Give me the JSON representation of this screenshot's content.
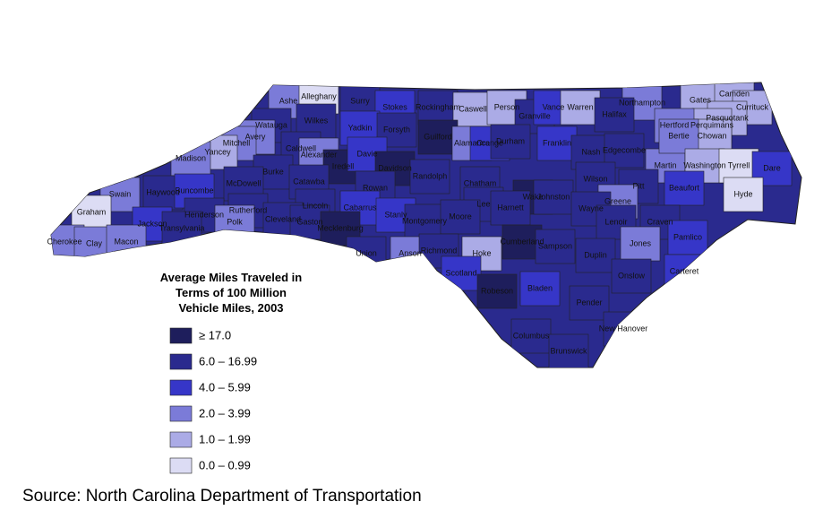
{
  "legend": {
    "title": [
      "Average Miles Traveled in",
      "Terms of 100 Million",
      "Vehicle Miles, 2003"
    ],
    "items": [
      {
        "label": "≥ 17.0",
        "color": "#1e1e5c"
      },
      {
        "label": "6.0 – 16.99",
        "color": "#2a2a8e"
      },
      {
        "label": "4.0 – 5.99",
        "color": "#3636c8"
      },
      {
        "label": "2.0 – 3.99",
        "color": "#7b7bd8"
      },
      {
        "label": "1.0 – 1.99",
        "color": "#ababe6"
      },
      {
        "label": "0.0 – 0.99",
        "color": "#dcdcf4"
      }
    ]
  },
  "counties": [
    {
      "name": "Ashe",
      "class": 3
    },
    {
      "name": "Alleghany",
      "class": 5
    },
    {
      "name": "Surry",
      "class": 1
    },
    {
      "name": "Stokes",
      "class": 2
    },
    {
      "name": "Rockingham",
      "class": 1
    },
    {
      "name": "Caswell",
      "class": 4
    },
    {
      "name": "Person",
      "class": 4
    },
    {
      "name": "Granville",
      "class": 1
    },
    {
      "name": "Vance",
      "class": 2
    },
    {
      "name": "Warren",
      "class": 4
    },
    {
      "name": "Northampton",
      "class": 3
    },
    {
      "name": "Gates",
      "class": 4
    },
    {
      "name": "Camden",
      "class": 4
    },
    {
      "name": "Currituck",
      "class": 4
    },
    {
      "name": "Pasquotank",
      "class": 4
    },
    {
      "name": "Perquimans",
      "class": 4
    },
    {
      "name": "Chowan",
      "class": 4
    },
    {
      "name": "Hertford",
      "class": 3
    },
    {
      "name": "Halifax",
      "class": 1
    },
    {
      "name": "Watauga",
      "class": 1
    },
    {
      "name": "Wilkes",
      "class": 1
    },
    {
      "name": "Yadkin",
      "class": 2
    },
    {
      "name": "Forsyth",
      "class": 1
    },
    {
      "name": "Guilford",
      "class": 0
    },
    {
      "name": "Alamance",
      "class": 3
    },
    {
      "name": "Orange",
      "class": 2
    },
    {
      "name": "Durham",
      "class": 1
    },
    {
      "name": "Franklin",
      "class": 2
    },
    {
      "name": "Nash",
      "class": 1
    },
    {
      "name": "Edgecombe",
      "class": 1
    },
    {
      "name": "Martin",
      "class": 3
    },
    {
      "name": "Bertie",
      "class": 3
    },
    {
      "name": "Washington",
      "class": 4
    },
    {
      "name": "Tyrrell",
      "class": 5
    },
    {
      "name": "Dare",
      "class": 2
    },
    {
      "name": "Hyde",
      "class": 5
    },
    {
      "name": "Avery",
      "class": 3
    },
    {
      "name": "Mitchell",
      "class": 3
    },
    {
      "name": "Yancey",
      "class": 4
    },
    {
      "name": "Madison",
      "class": 3
    },
    {
      "name": "Caldwell",
      "class": 1
    },
    {
      "name": "Alexander",
      "class": 3
    },
    {
      "name": "Iredell",
      "class": 0
    },
    {
      "name": "Davie",
      "class": 2
    },
    {
      "name": "Davidson",
      "class": 0
    },
    {
      "name": "Randolph",
      "class": 1
    },
    {
      "name": "Chatham",
      "class": 1
    },
    {
      "name": "Wake",
      "class": 0
    },
    {
      "name": "Johnston",
      "class": 1
    },
    {
      "name": "Wilson",
      "class": 1
    },
    {
      "name": "Pitt",
      "class": 1
    },
    {
      "name": "Beaufort",
      "class": 2
    },
    {
      "name": "Burke",
      "class": 1
    },
    {
      "name": "McDowell",
      "class": 1
    },
    {
      "name": "Catawba",
      "class": 1
    },
    {
      "name": "Rowan",
      "class": 1
    },
    {
      "name": "Lee",
      "class": 1
    },
    {
      "name": "Harnett",
      "class": 1
    },
    {
      "name": "Greene",
      "class": 3
    },
    {
      "name": "Wayne",
      "class": 1
    },
    {
      "name": "Lenoir",
      "class": 1
    },
    {
      "name": "Craven",
      "class": 1
    },
    {
      "name": "Pamlico",
      "class": 2
    },
    {
      "name": "Swain",
      "class": 3
    },
    {
      "name": "Haywood",
      "class": 1
    },
    {
      "name": "Buncombe",
      "class": 2
    },
    {
      "name": "Henderson",
      "class": 1
    },
    {
      "name": "Rutherford",
      "class": 1
    },
    {
      "name": "Lincoln",
      "class": 1
    },
    {
      "name": "Cabarrus",
      "class": 2
    },
    {
      "name": "Stanly",
      "class": 2
    },
    {
      "name": "Montgomery",
      "class": 1
    },
    {
      "name": "Moore",
      "class": 1
    },
    {
      "name": "Graham",
      "class": 5
    },
    {
      "name": "Jackson",
      "class": 2
    },
    {
      "name": "Transylvania",
      "class": 1
    },
    {
      "name": "Polk",
      "class": 3
    },
    {
      "name": "Cleveland",
      "class": 1
    },
    {
      "name": "Gaston",
      "class": 1
    },
    {
      "name": "Mecklenburg",
      "class": 0
    },
    {
      "name": "Cumberland",
      "class": 0
    },
    {
      "name": "Sampson",
      "class": 1
    },
    {
      "name": "Jones",
      "class": 3
    },
    {
      "name": "Cherokee",
      "class": 3
    },
    {
      "name": "Clay",
      "class": 3
    },
    {
      "name": "Macon",
      "class": 3
    },
    {
      "name": "Union",
      "class": 1
    },
    {
      "name": "Anson",
      "class": 3
    },
    {
      "name": "Richmond",
      "class": 1
    },
    {
      "name": "Hoke",
      "class": 4
    },
    {
      "name": "Duplin",
      "class": 1
    },
    {
      "name": "Onslow",
      "class": 1
    },
    {
      "name": "Carteret",
      "class": 2
    },
    {
      "name": "Scotland",
      "class": 2
    },
    {
      "name": "Robeson",
      "class": 0
    },
    {
      "name": "Bladen",
      "class": 2
    },
    {
      "name": "Pender",
      "class": 1
    },
    {
      "name": "New Hanover",
      "class": 1
    },
    {
      "name": "Columbus",
      "class": 1
    },
    {
      "name": "Brunswick",
      "class": 1
    }
  ],
  "source": "Source: North Carolina Department of Transportation"
}
